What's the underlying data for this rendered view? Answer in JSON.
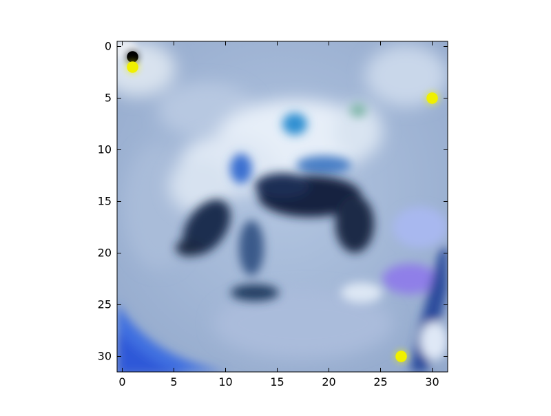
{
  "chart_data": {
    "type": "heatmap",
    "title": "",
    "xlabel": "",
    "ylabel": "",
    "xlim": [
      -0.5,
      31.5
    ],
    "ylim": [
      31.5,
      -0.5
    ],
    "x_ticks": [
      0,
      5,
      10,
      15,
      20,
      25,
      30
    ],
    "y_ticks": [
      0,
      5,
      10,
      15,
      20,
      25,
      30
    ],
    "grid": false,
    "image_description": "Blurry 32x32 blue-tinted image of a frog-like animal on a light blue background",
    "markers": [
      {
        "x": 1,
        "y": 1,
        "color": "#000000"
      },
      {
        "x": 1,
        "y": 2,
        "color": "#f0f000"
      },
      {
        "x": 30,
        "y": 5,
        "color": "#f0f000"
      },
      {
        "x": 27,
        "y": 30,
        "color": "#f0f000"
      }
    ],
    "colors": {
      "background": "#9fb4d4",
      "light": "#e2ecf7",
      "dark": "#0f1f3d",
      "accent_blue": "#3f6fe0",
      "accent_purple": "#8f7fe8",
      "marker_yellow": "#f0f000"
    }
  }
}
